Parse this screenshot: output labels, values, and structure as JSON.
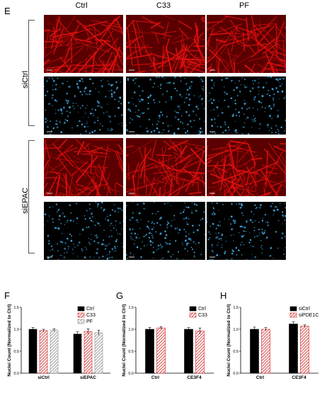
{
  "panel_e": {
    "letter": "E",
    "columns": [
      "Ctrl",
      "C33",
      "PF"
    ],
    "rows": [
      "siCtrl",
      "siEPAC"
    ]
  },
  "colors": {
    "ctrl": "#000000",
    "c33": "#d42020",
    "pf": "#8a8a8a",
    "actin": "#e01010",
    "nuclei": "#3fa9e0"
  },
  "chart_data": [
    {
      "panel": "F",
      "type": "bar",
      "ylabel": "Nuclei Count (Normalized to Ctrl)",
      "ylim": [
        0.0,
        1.5
      ],
      "yticks": [
        "0.0",
        "0.5",
        "1.0",
        "1.5"
      ],
      "categories": [
        "siCtrl",
        "siEPAC"
      ],
      "series": [
        {
          "name": "Ctrl",
          "values": [
            1.0,
            0.89
          ],
          "errors": [
            0.04,
            0.05
          ],
          "pattern": "solid",
          "color": "#000000"
        },
        {
          "name": "C33",
          "values": [
            0.97,
            0.95
          ],
          "errors": [
            0.03,
            0.06
          ],
          "pattern": "hatch",
          "color": "#d42020"
        },
        {
          "name": "PF",
          "values": [
            0.98,
            0.92
          ],
          "errors": [
            0.03,
            0.06
          ],
          "pattern": "hatch",
          "color": "#8a8a8a"
        }
      ],
      "legend": "top-right"
    },
    {
      "panel": "G",
      "type": "bar",
      "ylabel": "Nuclei Count (Normalized to Ctrl)",
      "ylim": [
        0.0,
        1.5
      ],
      "yticks": [
        "0.0",
        "0.5",
        "1.0",
        "1.5"
      ],
      "categories": [
        "Ctrl",
        "CE3F4"
      ],
      "series": [
        {
          "name": "Ctrl",
          "values": [
            1.0,
            1.0
          ],
          "errors": [
            0.04,
            0.04
          ],
          "pattern": "solid",
          "color": "#000000"
        },
        {
          "name": "C33",
          "values": [
            1.03,
            0.96
          ],
          "errors": [
            0.03,
            0.07
          ],
          "pattern": "hatch",
          "color": "#d42020"
        }
      ],
      "legend": "top-right"
    },
    {
      "panel": "H",
      "type": "bar",
      "ylabel": "Nuclei Count (Normalized to Ctrl)",
      "ylim": [
        0.0,
        1.5
      ],
      "yticks": [
        "0.0",
        "0.5",
        "1.0",
        "1.5"
      ],
      "categories": [
        "Ctrl",
        "CE3F4"
      ],
      "series": [
        {
          "name": "siCtrl",
          "values": [
            1.0,
            1.12
          ],
          "errors": [
            0.05,
            0.05
          ],
          "pattern": "solid",
          "color": "#000000"
        },
        {
          "name": "siPDE1C",
          "values": [
            1.0,
            1.07
          ],
          "errors": [
            0.04,
            0.03
          ],
          "pattern": "hatch",
          "color": "#d42020"
        }
      ],
      "legend": "top-right"
    }
  ]
}
